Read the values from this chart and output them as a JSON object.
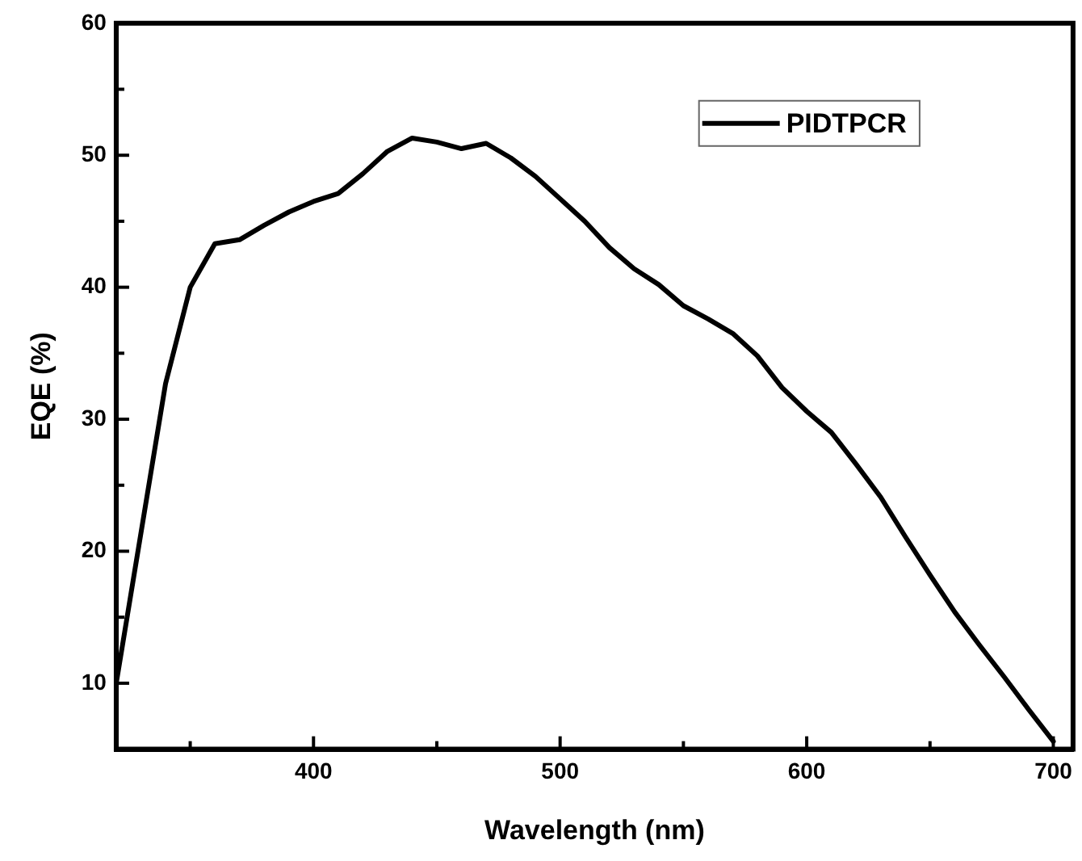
{
  "chart_data": {
    "type": "line",
    "xlabel": "Wavelength (nm)",
    "ylabel": "EQE (%)",
    "x": [
      320,
      340,
      350,
      360,
      370,
      380,
      390,
      400,
      410,
      420,
      430,
      440,
      450,
      460,
      470,
      480,
      490,
      500,
      510,
      520,
      530,
      540,
      550,
      560,
      570,
      580,
      590,
      600,
      610,
      620,
      630,
      640,
      650,
      660,
      670,
      680,
      690,
      700
    ],
    "series": [
      {
        "name": "PIDTPCR",
        "color": "#000000",
        "values": [
          10,
          32.7,
          40,
          43.3,
          43.6,
          44.7,
          45.7,
          46.5,
          47.1,
          48.6,
          50.3,
          51.3,
          51.0,
          50.5,
          50.9,
          49.8,
          48.4,
          46.7,
          45.0,
          43.0,
          41.4,
          40.2,
          38.6,
          37.6,
          36.5,
          34.8,
          32.4,
          30.6,
          29.0,
          26.6,
          24.1,
          21.1,
          18.2,
          15.4,
          12.9,
          10.5,
          8.0,
          5.6
        ]
      }
    ],
    "xlim": [
      320,
      708
    ],
    "ylim": [
      5,
      60
    ],
    "xticks": [
      {
        "value": 350,
        "label": null
      },
      400,
      {
        "value": 450,
        "label": null
      },
      500,
      {
        "value": 550,
        "label": null
      },
      600,
      {
        "value": 650,
        "label": null
      },
      700
    ],
    "yticks": [
      10,
      {
        "value": 15,
        "label": null
      },
      20,
      {
        "value": 25,
        "label": null
      },
      30,
      {
        "value": 35,
        "label": null
      },
      40,
      {
        "value": 45,
        "label": null
      },
      50,
      {
        "value": 55,
        "label": null
      },
      60
    ],
    "grid": false,
    "legend": "top right",
    "marker": "none",
    "line_style": "solid"
  }
}
